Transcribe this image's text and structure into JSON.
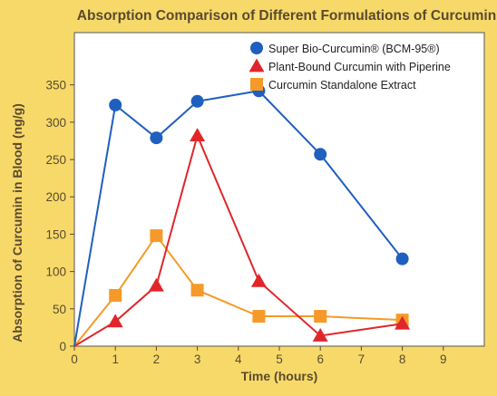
{
  "chart_data": {
    "type": "line",
    "title": "Absorption Comparison of Different Formulations of Curcumin",
    "xlabel": "Time (hours)",
    "ylabel": "Absorption of Curcumin in Blood (ng/g)",
    "xlim": [
      0,
      10
    ],
    "ylim": [
      0,
      420
    ],
    "x_ticks": [
      "0",
      "1",
      "2",
      "3",
      "4",
      "5",
      "6",
      "7",
      "8",
      "9"
    ],
    "y_ticks": [
      "0",
      "50",
      "100",
      "150",
      "200",
      "250",
      "300",
      "350"
    ],
    "grid": false,
    "legend_position": "top-right",
    "series": [
      {
        "name": "Super Bio-Curcumin® (BCM-95®)",
        "marker": "circle",
        "color": "#1f5fbf",
        "points": [
          [
            0,
            0
          ],
          [
            1,
            323
          ],
          [
            2,
            279
          ],
          [
            3,
            328
          ],
          [
            4.5,
            342
          ],
          [
            6,
            257
          ],
          [
            8,
            117
          ]
        ]
      },
      {
        "name": "Plant-Bound Curcumin with Piperine",
        "marker": "triangle",
        "color": "#e0262b",
        "points": [
          [
            0,
            0
          ],
          [
            1,
            33
          ],
          [
            2,
            81
          ],
          [
            3,
            282
          ],
          [
            4.5,
            87
          ],
          [
            6,
            14
          ],
          [
            8,
            30
          ]
        ]
      },
      {
        "name": "Curcumin Standalone Extract",
        "marker": "square",
        "color": "#f59a28",
        "points": [
          [
            0,
            0
          ],
          [
            1,
            68
          ],
          [
            2,
            148
          ],
          [
            3,
            75
          ],
          [
            4.5,
            40
          ],
          [
            6,
            40
          ],
          [
            8,
            35
          ]
        ]
      }
    ]
  }
}
